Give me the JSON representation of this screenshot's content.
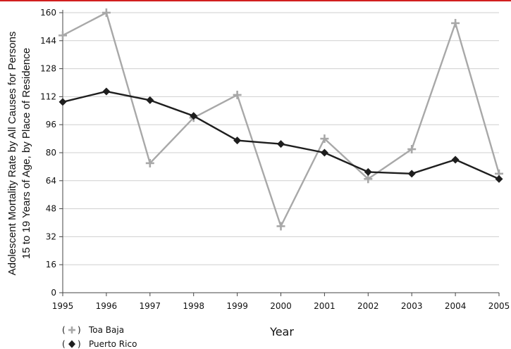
{
  "chart_data": {
    "type": "line",
    "title": "",
    "xlabel": "Year",
    "ylabel_line1": "Adolescent Mortality Rate by All Causes for Persons",
    "ylabel_line2": "15 to 19 Years of Age, by Place of Residence",
    "x": [
      "1995",
      "1996",
      "1997",
      "1998",
      "1999",
      "2000",
      "2001",
      "2002",
      "2003",
      "2004",
      "2005"
    ],
    "ylim": [
      0,
      160
    ],
    "yticks": [
      "0",
      "16",
      "32",
      "48",
      "64",
      "80",
      "96",
      "112",
      "128",
      "144",
      "160"
    ],
    "grid": true,
    "legend_position": "bottom-left",
    "series": [
      {
        "name": "Toa Baja",
        "marker": "plus",
        "color": "#a8a8a8",
        "values": [
          147,
          160,
          74,
          100,
          113,
          38,
          88,
          65,
          82,
          154,
          68
        ]
      },
      {
        "name": "Puerto Rico",
        "marker": "diamond",
        "color": "#1e1e1e",
        "values": [
          109,
          115,
          110,
          101,
          87,
          85,
          80,
          69,
          68,
          76,
          65
        ]
      }
    ]
  }
}
